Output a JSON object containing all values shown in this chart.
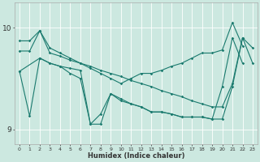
{
  "xlabel": "Humidex (Indice chaleur)",
  "bg_color": "#cce8e0",
  "grid_color": "#ffffff",
  "line_color": "#1a7a6e",
  "xlim": [
    -0.5,
    23.5
  ],
  "ylim": [
    8.85,
    10.25
  ],
  "xticks": [
    0,
    1,
    2,
    3,
    4,
    5,
    6,
    7,
    8,
    9,
    10,
    11,
    12,
    13,
    14,
    15,
    16,
    17,
    18,
    19,
    20,
    21,
    22,
    23
  ],
  "yticks": [
    9,
    10
  ],
  "lines": [
    {
      "x": [
        0,
        1,
        2,
        3,
        4,
        5,
        6,
        7,
        8,
        9,
        10,
        11,
        12,
        13,
        14,
        15,
        16,
        17,
        18,
        19,
        20,
        21,
        22,
        23
      ],
      "y": [
        9.77,
        9.77,
        9.97,
        9.75,
        9.72,
        9.68,
        9.65,
        9.62,
        9.58,
        9.55,
        9.52,
        9.48,
        9.45,
        9.42,
        9.38,
        9.35,
        9.32,
        9.28,
        9.25,
        9.22,
        9.22,
        9.45,
        9.9,
        9.8
      ]
    },
    {
      "x": [
        0,
        1,
        2,
        3,
        4,
        5,
        6,
        7,
        8,
        9,
        10,
        11,
        12,
        13,
        14,
        15,
        16,
        17,
        18,
        19,
        20,
        21,
        22,
        23
      ],
      "y": [
        9.57,
        9.13,
        9.7,
        9.65,
        9.62,
        9.6,
        9.58,
        9.05,
        9.05,
        9.35,
        9.28,
        9.25,
        9.22,
        9.17,
        9.17,
        9.15,
        9.12,
        9.12,
        9.12,
        9.1,
        9.1,
        9.42,
        9.9,
        9.65
      ]
    },
    {
      "x": [
        0,
        1,
        2,
        3,
        4,
        5,
        6,
        7,
        8,
        9,
        10,
        11,
        12,
        13,
        14,
        15,
        16,
        17,
        18,
        19,
        20,
        21,
        22
      ],
      "y": [
        9.87,
        9.87,
        9.97,
        9.8,
        9.75,
        9.7,
        9.65,
        9.6,
        9.55,
        9.5,
        9.45,
        9.5,
        9.55,
        9.55,
        9.58,
        9.62,
        9.65,
        9.7,
        9.75,
        9.75,
        9.78,
        10.05,
        9.82
      ]
    },
    {
      "x": [
        0,
        2,
        3,
        4,
        5,
        6,
        7,
        8,
        9,
        10,
        11,
        12,
        13,
        14,
        15,
        16,
        17,
        18,
        19,
        20,
        21,
        22
      ],
      "y": [
        9.57,
        9.7,
        9.65,
        9.62,
        9.55,
        9.5,
        9.05,
        9.15,
        9.35,
        9.3,
        9.25,
        9.22,
        9.17,
        9.17,
        9.15,
        9.12,
        9.12,
        9.12,
        9.1,
        9.42,
        9.9,
        9.65
      ]
    }
  ]
}
